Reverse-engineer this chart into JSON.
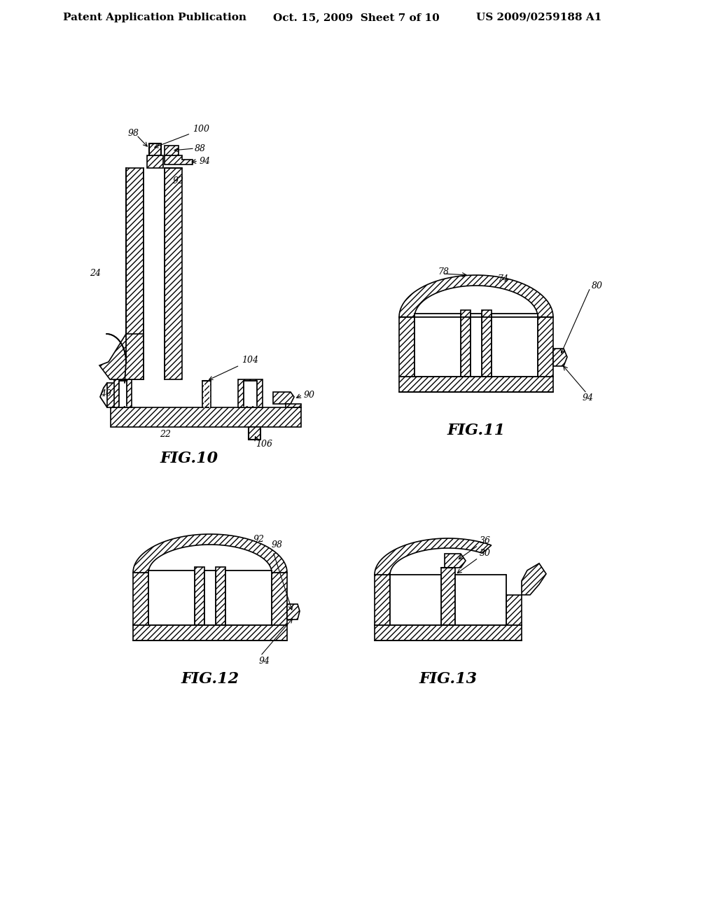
{
  "background_color": "#ffffff",
  "header_text_left": "Patent Application Publication",
  "header_text_mid": "Oct. 15, 2009  Sheet 7 of 10",
  "header_text_right": "US 2009/0259188 A1",
  "header_fontsize": 11,
  "fig_label_fontsize": 16,
  "line_color": "#000000",
  "face_color": "#ffffff",
  "ref_fontsize": 9,
  "fig_label_style": "italic"
}
